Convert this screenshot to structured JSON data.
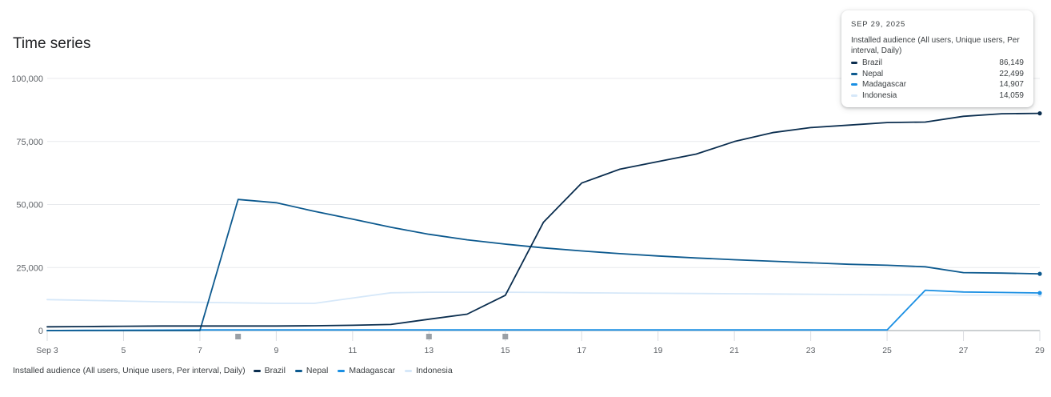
{
  "title": "Time series",
  "legend_caption": "Installed audience (All users, Unique users, Per interval, Daily)",
  "tooltip": {
    "date": "SEP 29, 2025",
    "metric": "Installed audience (All users, Unique users, Per interval, Daily)",
    "rows": [
      {
        "name": "Brazil",
        "value": "86,149"
      },
      {
        "name": "Nepal",
        "value": "22,499"
      },
      {
        "name": "Madagascar",
        "value": "14,907"
      },
      {
        "name": "Indonesia",
        "value": "14,059"
      }
    ]
  },
  "chart_data": {
    "type": "line",
    "x": [
      "Sep 3",
      "4",
      "5",
      "6",
      "7",
      "8",
      "9",
      "10",
      "11",
      "12",
      "13",
      "14",
      "15",
      "16",
      "17",
      "18",
      "19",
      "20",
      "21",
      "22",
      "23",
      "24",
      "25",
      "26",
      "27",
      "28",
      "29"
    ],
    "x_tick_labels": [
      "Sep 3",
      "5",
      "7",
      "9",
      "11",
      "13",
      "15",
      "17",
      "19",
      "21",
      "23",
      "25",
      "27",
      "29"
    ],
    "y_tick_labels": [
      "0",
      "25,000",
      "50,000",
      "75,000",
      "100,000"
    ],
    "ylim": [
      0,
      100000
    ],
    "grid": true,
    "legend_position": "bottom-left",
    "markers_on_x": [
      "8",
      "13",
      "15"
    ],
    "series": [
      {
        "name": "Brazil",
        "color": "#0b2e4f",
        "values": [
          1500,
          1600,
          1700,
          1800,
          1800,
          1800,
          1800,
          1900,
          2100,
          2400,
          4500,
          6500,
          14000,
          43000,
          58500,
          64000,
          67000,
          70000,
          75000,
          78500,
          80500,
          81500,
          82500,
          82700,
          85000,
          86000,
          86149
        ]
      },
      {
        "name": "Nepal",
        "color": "#0d5a8f",
        "values": [
          0,
          0,
          0,
          0,
          0,
          52000,
          50700,
          47300,
          44200,
          41000,
          38200,
          36000,
          34300,
          32800,
          31600,
          30500,
          29600,
          28800,
          28100,
          27500,
          26900,
          26300,
          25900,
          25300,
          23000,
          22800,
          22499
        ]
      },
      {
        "name": "Madagascar",
        "color": "#1a8fe3",
        "values": [
          0,
          100,
          150,
          200,
          250,
          250,
          250,
          250,
          250,
          250,
          250,
          250,
          250,
          250,
          250,
          250,
          250,
          250,
          250,
          250,
          250,
          250,
          250,
          16000,
          15300,
          15100,
          14907
        ]
      },
      {
        "name": "Indonesia",
        "color": "#d6e8f9",
        "values": [
          12300,
          12000,
          11700,
          11400,
          11200,
          11000,
          10800,
          10800,
          12900,
          15000,
          15200,
          15200,
          15200,
          15100,
          15000,
          14900,
          14800,
          14700,
          14600,
          14500,
          14400,
          14300,
          14200,
          14100,
          14100,
          14100,
          14059
        ]
      }
    ]
  }
}
